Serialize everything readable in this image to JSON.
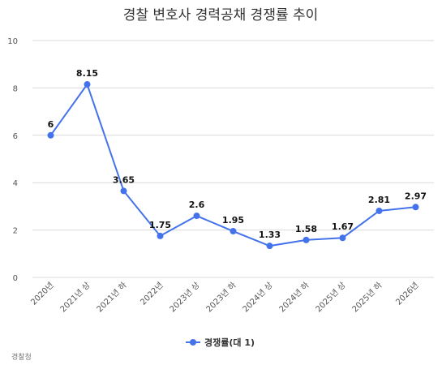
{
  "chart_data": {
    "type": "line",
    "title": "경찰 변호사 경력공채 경쟁률 추이",
    "categories": [
      "2020년",
      "2021년 상",
      "2021년 하",
      "2022년",
      "2023년 상",
      "2023년 하",
      "2024년 상",
      "2024년 하",
      "2025년 상",
      "2025년 하",
      "2026년"
    ],
    "series": [
      {
        "name": "경쟁률(대 1)",
        "values": [
          6,
          8.15,
          3.65,
          1.75,
          2.6,
          1.95,
          1.33,
          1.58,
          1.67,
          2.81,
          2.97
        ],
        "color": "#4472eb"
      }
    ],
    "data_labels": [
      "6",
      "8.15",
      "3.65",
      "1.75",
      "2.6",
      "1.95",
      "1.33",
      "1.58",
      "1.67",
      "2.81",
      "2.97"
    ],
    "y_ticks": [
      "0",
      "2",
      "4",
      "6",
      "8",
      "10"
    ],
    "ylim": [
      0,
      10
    ],
    "xlabel": "",
    "ylabel": "",
    "grid": true,
    "legend_position": "bottom",
    "source": "경찰청"
  }
}
